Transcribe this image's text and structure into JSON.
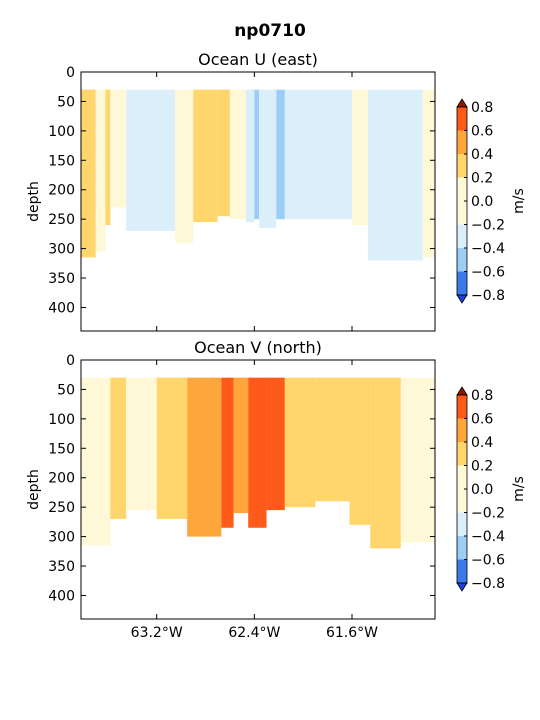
{
  "figure": {
    "suptitle": "np0710"
  },
  "palette": {
    "-0.8": "#1f3fe6",
    "-0.6": "#3b7be8",
    "-0.4": "#9ccdf5",
    "-0.2": "#dbeffb",
    "0.0": "#fff8d6",
    "0.2": "#ffd66b",
    "0.4": "#ffa63a",
    "0.6": "#ff5a1a",
    "0.8": "#8b1a00"
  },
  "chart_data": [
    {
      "type": "heatmap",
      "title": "Ocean U (east)",
      "ylabel": "depth",
      "xlabel": "",
      "ylim": [
        440,
        0
      ],
      "xlim": [
        -63.82,
        -60.92
      ],
      "yticks": [
        0,
        50,
        100,
        150,
        200,
        250,
        300,
        350,
        400
      ],
      "xticks": [
        -63.2,
        -62.4,
        -61.6
      ],
      "xticklabels": [
        "",
        "",
        ""
      ],
      "colorbar": {
        "label": "m/s",
        "ticks": [
          0.8,
          0.6,
          0.4,
          0.2,
          0.0,
          -0.2,
          -0.4,
          -0.6,
          -0.8
        ],
        "ticklabels": [
          "0.8",
          "0.6",
          "0.4",
          "0.2",
          "0.0",
          "−0.2",
          "−0.4",
          "−0.6",
          "−0.8"
        ]
      },
      "depth_top": 30,
      "columns": [
        {
          "x0": -63.82,
          "x1": -63.7,
          "v": 0.2,
          "bottom": 315
        },
        {
          "x0": -63.7,
          "x1": -63.62,
          "v": 0.0,
          "bottom": 305
        },
        {
          "x0": -63.62,
          "x1": -63.58,
          "v": 0.2,
          "bottom": 260
        },
        {
          "x0": -63.58,
          "x1": -63.45,
          "v": 0.0,
          "bottom": 230
        },
        {
          "x0": -63.45,
          "x1": -63.05,
          "v": -0.2,
          "bottom": 270
        },
        {
          "x0": -63.05,
          "x1": -62.9,
          "v": 0.0,
          "bottom": 290
        },
        {
          "x0": -62.9,
          "x1": -62.7,
          "v": 0.2,
          "bottom": 255
        },
        {
          "x0": -62.7,
          "x1": -62.6,
          "v": 0.2,
          "bottom": 245
        },
        {
          "x0": -62.6,
          "x1": -62.47,
          "v": 0.0,
          "bottom": 250
        },
        {
          "x0": -62.47,
          "x1": -62.4,
          "v": -0.2,
          "bottom": 255
        },
        {
          "x0": -62.4,
          "x1": -62.36,
          "v": -0.4,
          "bottom": 250
        },
        {
          "x0": -62.36,
          "x1": -62.22,
          "v": -0.2,
          "bottom": 265
        },
        {
          "x0": -62.22,
          "x1": -62.15,
          "v": -0.4,
          "bottom": 250
        },
        {
          "x0": -62.15,
          "x1": -61.6,
          "v": -0.2,
          "bottom": 250
        },
        {
          "x0": -61.6,
          "x1": -61.47,
          "v": 0.0,
          "bottom": 260
        },
        {
          "x0": -61.47,
          "x1": -61.02,
          "v": -0.2,
          "bottom": 320
        },
        {
          "x0": -61.02,
          "x1": -60.92,
          "v": 0.0,
          "bottom": 315
        }
      ]
    },
    {
      "type": "heatmap",
      "title": "Ocean V (north)",
      "ylabel": "depth",
      "xlabel": "",
      "ylim": [
        440,
        0
      ],
      "xlim": [
        -63.82,
        -60.92
      ],
      "yticks": [
        0,
        50,
        100,
        150,
        200,
        250,
        300,
        350,
        400
      ],
      "xticks": [
        -63.2,
        -62.4,
        -61.6
      ],
      "xticklabels": [
        "63.2°W",
        "62.4°W",
        "61.6°W"
      ],
      "colorbar": {
        "label": "m/s",
        "ticks": [
          0.8,
          0.6,
          0.4,
          0.2,
          0.0,
          -0.2,
          -0.4,
          -0.6,
          -0.8
        ],
        "ticklabels": [
          "0.8",
          "0.6",
          "0.4",
          "0.2",
          "0.0",
          "−0.2",
          "−0.4",
          "−0.6",
          "−0.8"
        ]
      },
      "depth_top": 30,
      "columns": [
        {
          "x0": -63.82,
          "x1": -63.58,
          "v": 0.0,
          "bottom": 315
        },
        {
          "x0": -63.58,
          "x1": -63.45,
          "v": 0.2,
          "bottom": 270
        },
        {
          "x0": -63.45,
          "x1": -63.2,
          "v": 0.0,
          "bottom": 255
        },
        {
          "x0": -63.2,
          "x1": -62.95,
          "v": 0.2,
          "bottom": 270
        },
        {
          "x0": -62.95,
          "x1": -62.67,
          "v": 0.4,
          "bottom": 300
        },
        {
          "x0": -62.67,
          "x1": -62.57,
          "v": 0.6,
          "bottom": 285
        },
        {
          "x0": -62.57,
          "x1": -62.45,
          "v": 0.4,
          "bottom": 260
        },
        {
          "x0": -62.45,
          "x1": -62.3,
          "v": 0.6,
          "bottom": 285
        },
        {
          "x0": -62.3,
          "x1": -62.15,
          "v": 0.6,
          "bottom": 255
        },
        {
          "x0": -62.15,
          "x1": -61.9,
          "v": 0.2,
          "bottom": 250
        },
        {
          "x0": -61.9,
          "x1": -61.62,
          "v": 0.2,
          "bottom": 240
        },
        {
          "x0": -61.62,
          "x1": -61.45,
          "v": 0.2,
          "bottom": 280
        },
        {
          "x0": -61.45,
          "x1": -61.2,
          "v": 0.2,
          "bottom": 320
        },
        {
          "x0": -61.2,
          "x1": -60.92,
          "v": 0.0,
          "bottom": 310
        }
      ]
    }
  ]
}
